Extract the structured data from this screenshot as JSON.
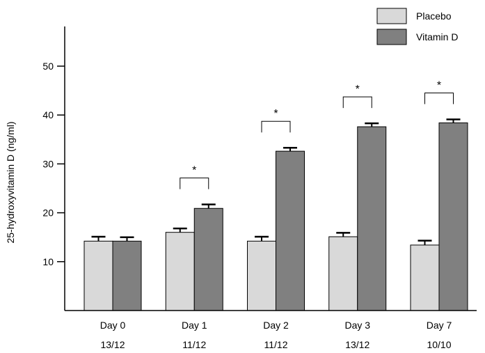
{
  "chart_data": {
    "type": "bar",
    "ylabel": "25-hydroxyvitamin D (ng/ml)",
    "xlabel": "",
    "ylim": [
      0,
      50
    ],
    "yticks": [
      10,
      20,
      30,
      40,
      50
    ],
    "categories": [
      "Day 0",
      "Day 1",
      "Day 2",
      "Day 3",
      "Day 7"
    ],
    "sample_sizes": [
      "13/12",
      "11/12",
      "11/12",
      "13/12",
      "10/10"
    ],
    "series": [
      {
        "name": "Placebo",
        "color": "#d9d9d9",
        "values": [
          14.2,
          16.0,
          14.2,
          15.1,
          13.4
        ],
        "error": [
          0.9,
          0.8,
          0.9,
          0.8,
          0.9
        ]
      },
      {
        "name": "Vitamin D",
        "color": "#808080",
        "values": [
          14.2,
          20.9,
          32.6,
          37.6,
          38.4
        ],
        "error": [
          0.8,
          0.8,
          0.7,
          0.7,
          0.7
        ]
      }
    ],
    "significance_marker": "*",
    "significant": [
      false,
      true,
      true,
      true,
      true
    ],
    "legend_position": "top-right",
    "grid": false
  }
}
